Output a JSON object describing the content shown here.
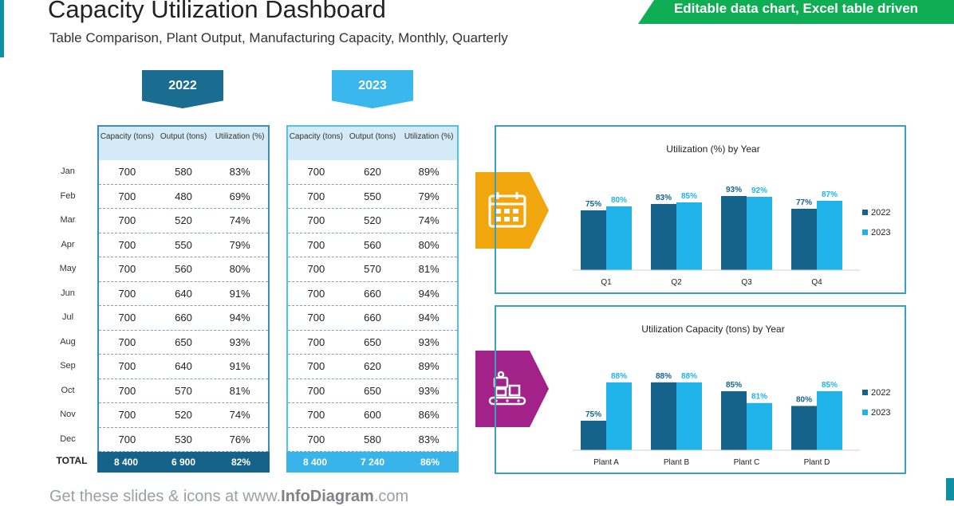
{
  "header": {
    "title": "Capacity Utilization Dashboard",
    "subtitle": "Table Comparison, Plant Output, Manufacturing Capacity, Monthly, Quarterly",
    "banner": "Editable data chart, Excel table driven"
  },
  "footer": {
    "prefix": "Get these slides & icons at www.",
    "brand": "InfoDiagram",
    "suffix": ".com"
  },
  "months": [
    "Jan",
    "Feb",
    "Mar",
    "Apr",
    "May",
    "Jun",
    "Jul",
    "Aug",
    "Sep",
    "Oct",
    "Nov",
    "Dec"
  ],
  "total_label": "TOTAL",
  "table_headers": [
    "Capacity (tons)",
    "Output (tons)",
    "Utilization (%)"
  ],
  "tables": [
    {
      "year": "2022",
      "rows": [
        [
          "700",
          "580",
          "83%"
        ],
        [
          "700",
          "480",
          "69%"
        ],
        [
          "700",
          "520",
          "74%"
        ],
        [
          "700",
          "550",
          "79%"
        ],
        [
          "700",
          "560",
          "80%"
        ],
        [
          "700",
          "640",
          "91%"
        ],
        [
          "700",
          "660",
          "94%"
        ],
        [
          "700",
          "650",
          "93%"
        ],
        [
          "700",
          "640",
          "91%"
        ],
        [
          "700",
          "570",
          "81%"
        ],
        [
          "700",
          "520",
          "74%"
        ],
        [
          "700",
          "530",
          "76%"
        ]
      ],
      "total": [
        "8 400",
        "6 900",
        "82%"
      ]
    },
    {
      "year": "2023",
      "rows": [
        [
          "700",
          "620",
          "89%"
        ],
        [
          "700",
          "550",
          "79%"
        ],
        [
          "700",
          "520",
          "74%"
        ],
        [
          "700",
          "560",
          "80%"
        ],
        [
          "700",
          "570",
          "81%"
        ],
        [
          "700",
          "660",
          "94%"
        ],
        [
          "700",
          "660",
          "94%"
        ],
        [
          "700",
          "650",
          "93%"
        ],
        [
          "700",
          "620",
          "89%"
        ],
        [
          "700",
          "650",
          "93%"
        ],
        [
          "700",
          "600",
          "86%"
        ],
        [
          "700",
          "580",
          "83%"
        ]
      ],
      "total": [
        "8 400",
        "7 240",
        "86%"
      ]
    }
  ],
  "chart_data": [
    {
      "type": "bar",
      "title": "Utilization (%) by Year",
      "categories": [
        "Q1",
        "Q2",
        "Q3",
        "Q4"
      ],
      "series": [
        {
          "name": "2022",
          "values": [
            75,
            83,
            93,
            77
          ],
          "labels": [
            "75%",
            "83%",
            "93%",
            "77%"
          ],
          "color": "#15628a"
        },
        {
          "name": "2023",
          "values": [
            80,
            85,
            92,
            87
          ],
          "labels": [
            "80%",
            "85%",
            "92%",
            "87%"
          ],
          "color": "#1fb3ea"
        }
      ],
      "ylim": [
        0,
        100
      ],
      "legend": "right",
      "grid": false,
      "icon": "calendar-icon",
      "icon_color": "#f2a60d"
    },
    {
      "type": "bar",
      "title": "Utilization Capacity (tons) by Year",
      "categories": [
        "Plant A",
        "Plant B",
        "Plant C",
        "Plant D"
      ],
      "series": [
        {
          "name": "2022",
          "values": [
            75,
            88,
            85,
            80
          ],
          "labels": [
            "75%",
            "88%",
            "85%",
            "80%"
          ],
          "color": "#15628a"
        },
        {
          "name": "2023",
          "values": [
            88,
            88,
            81,
            85
          ],
          "labels": [
            "88%",
            "88%",
            "81%",
            "85%"
          ],
          "color": "#1fb3ea"
        }
      ],
      "ylim": [
        65,
        92
      ],
      "legend": "right",
      "grid": false,
      "icon": "factory-robot-icon",
      "icon_color": "#a3228a"
    }
  ]
}
